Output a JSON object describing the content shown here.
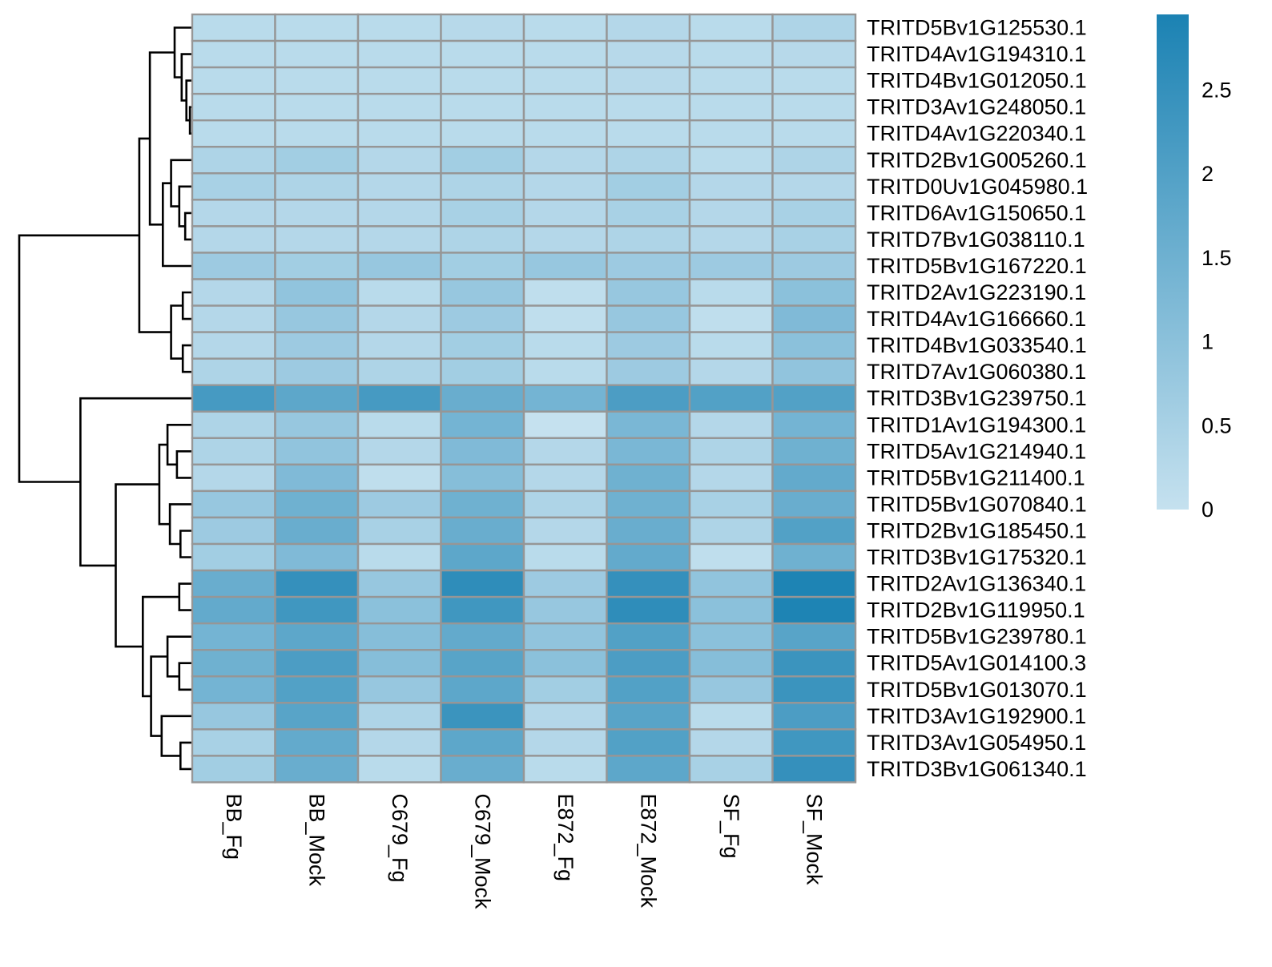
{
  "chart_data": {
    "type": "heatmap",
    "columns": [
      "BB_Fg",
      "BB_Mock",
      "C679_Fg",
      "C679_Mock",
      "E872_Fg",
      "E872_Mock",
      "SF_Fg",
      "SF_Mock"
    ],
    "rows": [
      "TRITD5Bv1G125530.1",
      "TRITD4Av1G194310.1",
      "TRITD4Bv1G012050.1",
      "TRITD3Av1G248050.1",
      "TRITD4Av1G220340.1",
      "TRITD2Bv1G005260.1",
      "TRITD0Uv1G045980.1",
      "TRITD6Av1G150650.1",
      "TRITD7Bv1G038110.1",
      "TRITD5Bv1G167220.1",
      "TRITD2Av1G223190.1",
      "TRITD4Av1G166660.1",
      "TRITD4Bv1G033540.1",
      "TRITD7Av1G060380.1",
      "TRITD3Bv1G239750.1",
      "TRITD1Av1G194300.1",
      "TRITD5Av1G214940.1",
      "TRITD5Bv1G211400.1",
      "TRITD5Bv1G070840.1",
      "TRITD2Bv1G185450.1",
      "TRITD3Bv1G175320.1",
      "TRITD2Av1G136340.1",
      "TRITD2Bv1G119950.1",
      "TRITD5Bv1G239780.1",
      "TRITD5Av1G014100.3",
      "TRITD5Bv1G013070.1",
      "TRITD3Av1G192900.1",
      "TRITD3Av1G054950.1",
      "TRITD3Bv1G061340.1"
    ],
    "values": [
      [
        0.2,
        0.2,
        0.2,
        0.25,
        0.2,
        0.3,
        0.2,
        0.4
      ],
      [
        0.2,
        0.2,
        0.2,
        0.2,
        0.2,
        0.25,
        0.2,
        0.25
      ],
      [
        0.2,
        0.2,
        0.2,
        0.2,
        0.2,
        0.25,
        0.2,
        0.2
      ],
      [
        0.2,
        0.2,
        0.2,
        0.2,
        0.2,
        0.2,
        0.2,
        0.2
      ],
      [
        0.2,
        0.2,
        0.2,
        0.2,
        0.2,
        0.2,
        0.2,
        0.2
      ],
      [
        0.4,
        0.6,
        0.3,
        0.6,
        0.3,
        0.4,
        0.2,
        0.4
      ],
      [
        0.5,
        0.4,
        0.3,
        0.4,
        0.3,
        0.6,
        0.3,
        0.3
      ],
      [
        0.3,
        0.3,
        0.3,
        0.5,
        0.3,
        0.5,
        0.3,
        0.5
      ],
      [
        0.3,
        0.3,
        0.3,
        0.4,
        0.3,
        0.4,
        0.3,
        0.5
      ],
      [
        0.7,
        0.6,
        0.8,
        0.6,
        0.8,
        0.7,
        0.7,
        0.7
      ],
      [
        0.3,
        0.9,
        0.2,
        0.8,
        0.1,
        0.8,
        0.2,
        1.0
      ],
      [
        0.3,
        0.8,
        0.3,
        0.7,
        0.1,
        0.8,
        0.1,
        1.2
      ],
      [
        0.3,
        0.7,
        0.3,
        0.6,
        0.2,
        0.7,
        0.2,
        1.0
      ],
      [
        0.4,
        0.7,
        0.4,
        0.6,
        0.2,
        0.7,
        0.3,
        0.9
      ],
      [
        2.2,
        1.8,
        2.2,
        1.6,
        1.4,
        2.1,
        2.0,
        2.0
      ],
      [
        0.4,
        0.8,
        0.2,
        1.4,
        0.0,
        1.3,
        0.3,
        1.4
      ],
      [
        0.4,
        0.9,
        0.3,
        1.2,
        0.3,
        1.3,
        0.4,
        1.5
      ],
      [
        0.3,
        1.2,
        0.1,
        1.1,
        0.3,
        1.5,
        0.3,
        1.7
      ],
      [
        0.8,
        1.5,
        0.7,
        1.5,
        0.4,
        1.5,
        0.5,
        1.6
      ],
      [
        0.7,
        1.6,
        0.5,
        1.6,
        0.3,
        1.6,
        0.4,
        2.0
      ],
      [
        0.6,
        1.2,
        0.2,
        1.8,
        0.2,
        1.7,
        0.1,
        1.5
      ],
      [
        1.6,
        2.5,
        0.8,
        2.6,
        0.7,
        2.5,
        0.9,
        2.9
      ],
      [
        1.7,
        2.3,
        1.0,
        2.3,
        0.8,
        2.6,
        1.0,
        2.9
      ],
      [
        1.4,
        1.8,
        1.1,
        1.7,
        0.9,
        2.0,
        1.0,
        1.9
      ],
      [
        1.5,
        2.1,
        1.1,
        1.9,
        1.0,
        2.1,
        1.1,
        2.4
      ],
      [
        1.4,
        2.0,
        0.8,
        1.8,
        0.6,
        2.0,
        0.8,
        2.4
      ],
      [
        0.8,
        1.9,
        0.4,
        2.4,
        0.3,
        1.9,
        0.2,
        2.1
      ],
      [
        0.5,
        1.7,
        0.3,
        1.8,
        0.3,
        2.0,
        0.3,
        2.3
      ],
      [
        0.6,
        1.6,
        0.2,
        1.6,
        0.2,
        1.8,
        0.5,
        2.5
      ]
    ],
    "colorbar": {
      "ticks": [
        0,
        0.5,
        1,
        1.5,
        2,
        2.5
      ],
      "tick_labels": [
        "0",
        "0.5",
        "1",
        "1.5",
        "2",
        "2.5"
      ],
      "range": [
        0,
        2.95
      ],
      "colors": [
        "#c5e1ef",
        "#1b82b3"
      ]
    },
    "cell_border_color": "#969696",
    "row_dendrogram": true
  }
}
